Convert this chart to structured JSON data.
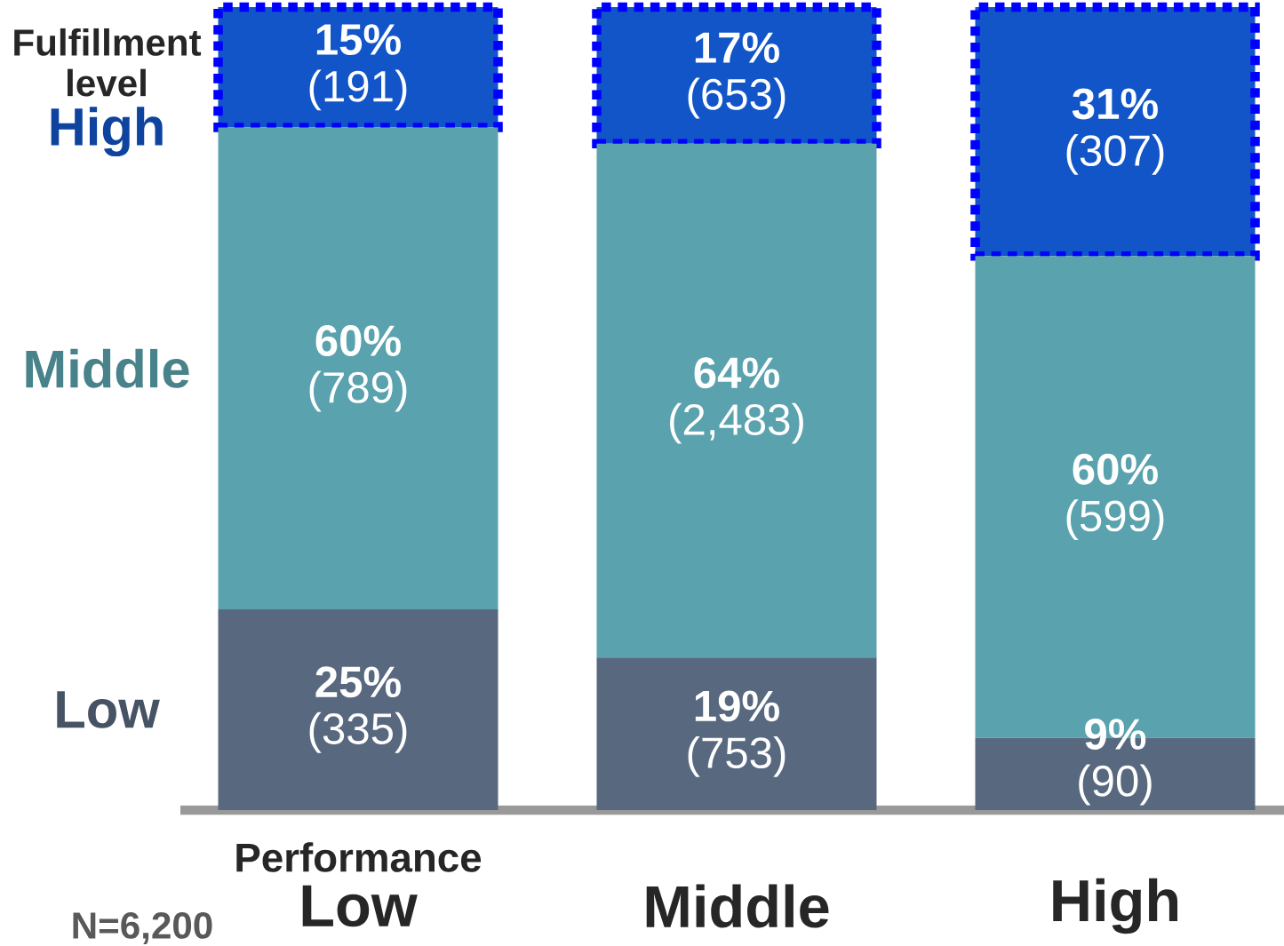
{
  "chart_data": {
    "type": "bar",
    "stacked": true,
    "legend": "left",
    "legend_title": "Fulfillment level",
    "xlabel": "Performance",
    "tick_labels": "x",
    "categories": [
      "Low",
      "Middle",
      "High"
    ],
    "series": [
      {
        "name": "Low",
        "color": "#58687f",
        "values": [
          25,
          19,
          9
        ],
        "value_labels": [
          "**25%** (335)",
          "**19%** (753)",
          "**9%** (90)"
        ]
      },
      {
        "name": "Middle",
        "color": "#5aa2ae",
        "values": [
          60,
          64,
          60
        ],
        "value_labels": [
          "**60%** (789)",
          "**64%** (2,483)",
          "**60%** (599)"
        ]
      },
      {
        "name": "High",
        "color": "#1155c8",
        "values": [
          15,
          17,
          31
        ],
        "line_style": "dotted",
        "value_labels": [
          "**15%** (191)",
          "**17%** (653)",
          "**31%** (307)"
        ]
      }
    ],
    "annotations": [
      "N=6,200"
    ]
  }
}
